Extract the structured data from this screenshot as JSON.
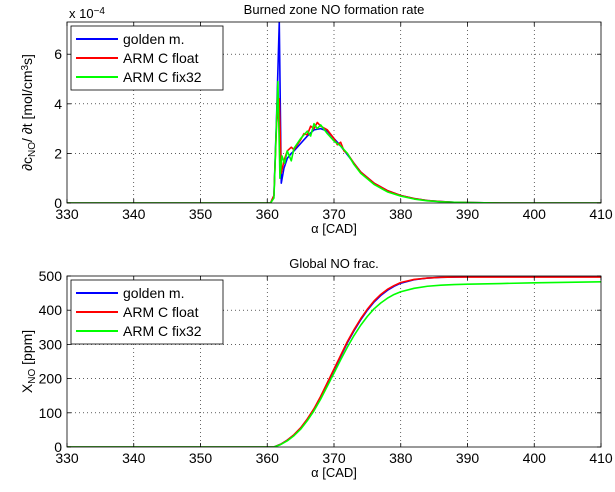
{
  "chart_data": [
    {
      "type": "line",
      "title": "Burned zone NO formation rate",
      "xlabel": "α [CAD]",
      "ylabel_parts": [
        "∂c",
        "NO",
        "/ ∂t [mol/cm",
        "3",
        "s]"
      ],
      "exponent_label": [
        "x 10",
        "−4"
      ],
      "xlim": [
        330,
        410
      ],
      "ylim": [
        0,
        7.3
      ],
      "xticks": [
        330,
        340,
        350,
        360,
        370,
        380,
        390,
        400,
        410
      ],
      "yticks": [
        0,
        2,
        4,
        6
      ],
      "grid": true,
      "legend_placement": "top-left",
      "series": [
        {
          "name": "golden m.",
          "color": "#0000ff",
          "x": [
            330,
            360.5,
            361.0,
            361.4,
            361.8,
            362.1,
            362.5,
            363,
            363.6,
            364,
            365,
            366,
            367,
            368,
            369,
            370,
            371,
            372,
            373,
            374,
            376,
            378,
            380,
            382,
            384,
            386,
            388,
            390,
            395,
            410
          ],
          "y": [
            0,
            0,
            0.3,
            3.5,
            7.3,
            0.8,
            1.4,
            1.8,
            2.0,
            2.1,
            2.4,
            2.7,
            2.95,
            3.0,
            2.9,
            2.6,
            2.3,
            1.95,
            1.6,
            1.25,
            0.8,
            0.5,
            0.3,
            0.18,
            0.1,
            0.06,
            0.03,
            0.02,
            0,
            0
          ]
        },
        {
          "name": "ARM C float",
          "color": "#ff0000",
          "x": [
            330,
            360.5,
            361.0,
            361.4,
            361.8,
            362.1,
            362.5,
            363,
            363.6,
            364,
            365,
            365.5,
            366,
            366.5,
            367,
            367.5,
            368,
            369,
            370,
            370.5,
            371,
            371.5,
            372,
            373,
            374,
            376,
            378,
            380,
            382,
            384,
            386,
            388,
            390,
            395,
            410
          ],
          "y": [
            0,
            0,
            0.3,
            3.2,
            4.2,
            1.2,
            1.7,
            2.1,
            2.25,
            2.15,
            2.55,
            2.8,
            2.75,
            3.1,
            3.0,
            3.25,
            3.1,
            2.95,
            2.6,
            2.35,
            2.45,
            2.1,
            2.0,
            1.6,
            1.25,
            0.8,
            0.5,
            0.3,
            0.18,
            0.1,
            0.06,
            0.03,
            0.02,
            0,
            0
          ]
        },
        {
          "name": "ARM C fix32",
          "color": "#00ff00",
          "x": [
            330,
            360.5,
            361.0,
            361.3,
            361.6,
            361.9,
            362.2,
            362.6,
            363,
            363.6,
            364,
            365,
            366,
            366.5,
            367,
            367.5,
            368,
            369,
            370,
            371,
            372,
            373,
            374,
            376,
            378,
            380,
            382,
            384,
            386,
            388,
            390,
            395,
            410
          ],
          "y": [
            0,
            0,
            0.2,
            2.6,
            4.9,
            1.0,
            1.9,
            1.6,
            2.1,
            1.7,
            2.2,
            2.6,
            2.9,
            2.7,
            3.2,
            3.0,
            3.15,
            2.8,
            2.5,
            2.3,
            2.0,
            1.55,
            1.2,
            0.75,
            0.45,
            0.28,
            0.16,
            0.09,
            0.05,
            0.03,
            0.02,
            0,
            0
          ]
        }
      ]
    },
    {
      "type": "line",
      "title": "Global NO frac.",
      "xlabel": "α [CAD]",
      "ylabel_parts": [
        "X",
        "NO",
        " [ppm]"
      ],
      "xlim": [
        330,
        410
      ],
      "ylim": [
        0,
        500
      ],
      "xticks": [
        330,
        340,
        350,
        360,
        370,
        380,
        390,
        400,
        410
      ],
      "yticks": [
        0,
        100,
        200,
        300,
        400,
        500
      ],
      "grid": true,
      "legend_placement": "top-left",
      "series": [
        {
          "name": "golden m.",
          "color": "#0000ff",
          "x": [
            330,
            361,
            362,
            363,
            364,
            365,
            366,
            367,
            368,
            369,
            370,
            371,
            372,
            373,
            374,
            375,
            376,
            377,
            378,
            379,
            380,
            382,
            384,
            386,
            388,
            390,
            395,
            400,
            410
          ],
          "y": [
            0,
            0,
            8,
            20,
            35,
            55,
            80,
            110,
            145,
            185,
            225,
            265,
            305,
            340,
            372,
            400,
            424,
            443,
            458,
            470,
            479,
            489,
            494,
            496,
            497,
            498,
            498,
            498,
            498
          ]
        },
        {
          "name": "ARM C float",
          "color": "#ff0000",
          "x": [
            330,
            361,
            362,
            363,
            364,
            365,
            366,
            367,
            368,
            369,
            370,
            371,
            372,
            373,
            374,
            375,
            376,
            377,
            378,
            379,
            380,
            382,
            384,
            386,
            388,
            390,
            395,
            400,
            410
          ],
          "y": [
            0,
            0,
            8,
            20,
            36,
            56,
            82,
            112,
            148,
            188,
            228,
            268,
            308,
            343,
            375,
            403,
            427,
            446,
            461,
            472,
            481,
            490,
            494,
            496,
            497,
            497,
            497,
            497,
            497
          ]
        },
        {
          "name": "ARM C fix32",
          "color": "#00ff00",
          "x": [
            330,
            361,
            362,
            363,
            364,
            365,
            366,
            367,
            368,
            369,
            370,
            371,
            372,
            373,
            374,
            375,
            376,
            377,
            378,
            379,
            380,
            382,
            384,
            386,
            388,
            390,
            395,
            400,
            410
          ],
          "y": [
            0,
            0,
            7,
            18,
            33,
            52,
            77,
            106,
            140,
            178,
            216,
            255,
            292,
            326,
            356,
            382,
            404,
            421,
            435,
            446,
            454,
            464,
            470,
            473,
            475,
            476,
            478,
            480,
            483
          ]
        }
      ]
    }
  ]
}
